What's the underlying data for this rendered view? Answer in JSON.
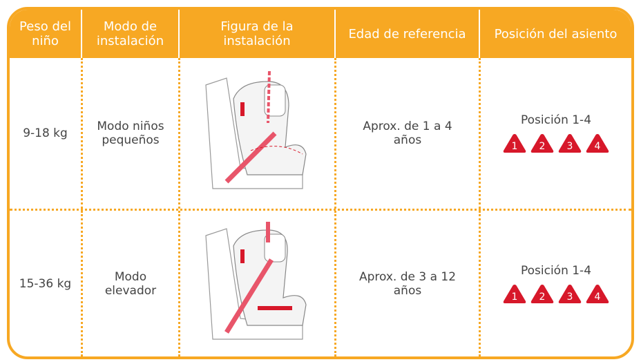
{
  "table": {
    "header": [
      "Peso del niño",
      "Modo de instalación",
      "Figura de la instalación",
      "Edad de referencia",
      "Posición del asiento"
    ],
    "rows": [
      {
        "weight": "9-18 kg",
        "mode": "Modo niños pequeños",
        "age": "Aprox. de 1 a 4 años",
        "position": "Posición 1-4",
        "badges": [
          "1",
          "2",
          "3",
          "4"
        ]
      },
      {
        "weight": "15-36 kg",
        "mode": "Modo elevador",
        "age": "Aprox. de 3 a 12 años",
        "position": "Posición 1-4",
        "badges": [
          "1",
          "2",
          "3",
          "4"
        ]
      }
    ]
  }
}
